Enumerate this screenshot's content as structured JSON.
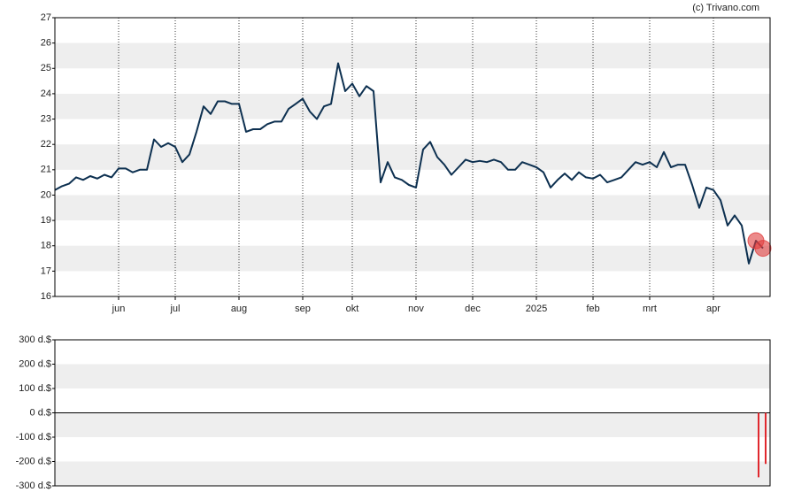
{
  "chart_data": [
    {
      "type": "line",
      "credit": "(c) Trivano.com",
      "categories": [
        null,
        null,
        null,
        null,
        null,
        null,
        null,
        null,
        null,
        "jun",
        null,
        null,
        null,
        null,
        null,
        null,
        null,
        "jul",
        null,
        null,
        null,
        null,
        null,
        null,
        null,
        null,
        "aug",
        null,
        null,
        null,
        null,
        null,
        null,
        null,
        null,
        "sep",
        null,
        null,
        null,
        null,
        null,
        null,
        "okt",
        null,
        null,
        null,
        null,
        null,
        null,
        null,
        null,
        "nov",
        null,
        null,
        null,
        null,
        null,
        null,
        null,
        "dec",
        null,
        null,
        null,
        null,
        null,
        null,
        null,
        null,
        "2025",
        null,
        null,
        null,
        null,
        null,
        null,
        null,
        "feb",
        null,
        null,
        null,
        null,
        null,
        null,
        null,
        "mrt",
        null,
        null,
        null,
        null,
        null,
        null,
        null,
        null,
        "apr",
        null,
        null,
        null,
        null,
        null,
        null,
        null
      ],
      "series": [
        {
          "color": "#0d3050",
          "values": [
            20.2,
            20.35,
            20.45,
            20.7,
            20.6,
            20.75,
            20.65,
            20.8,
            20.7,
            21.05,
            21.05,
            20.9,
            21.0,
            21.0,
            22.2,
            21.9,
            22.05,
            21.9,
            21.3,
            21.6,
            22.5,
            23.5,
            23.2,
            23.7,
            23.7,
            23.6,
            23.6,
            22.5,
            22.6,
            22.6,
            22.8,
            22.9,
            22.9,
            23.4,
            23.6,
            23.8,
            23.3,
            23.0,
            23.5,
            23.6,
            25.2,
            24.1,
            24.4,
            23.9,
            24.3,
            24.1,
            20.5,
            21.3,
            20.7,
            20.6,
            20.4,
            20.3,
            21.8,
            22.1,
            21.5,
            21.2,
            20.8,
            21.1,
            21.4,
            21.3,
            21.35,
            21.3,
            21.4,
            21.3,
            21.0,
            21.0,
            21.3,
            21.2,
            21.1,
            20.9,
            20.3,
            20.6,
            20.85,
            20.6,
            20.9,
            20.7,
            20.65,
            20.8,
            20.5,
            20.6,
            20.7,
            21.0,
            21.3,
            21.2,
            21.3,
            21.1,
            21.7,
            21.1,
            21.2,
            21.2,
            20.4,
            19.5,
            20.3,
            20.2,
            19.8,
            18.8,
            19.2,
            18.8,
            17.3,
            18.2,
            17.9
          ]
        }
      ],
      "ylim": [
        16,
        27
      ],
      "yticks": [
        16,
        17,
        18,
        19,
        20,
        21,
        22,
        23,
        24,
        25,
        26,
        27
      ],
      "marker_color": "#e03c3c"
    },
    {
      "type": "bar",
      "color": "#e0282e",
      "values": [
        null,
        null,
        null,
        null,
        null,
        null,
        null,
        null,
        null,
        null,
        null,
        null,
        null,
        null,
        null,
        null,
        null,
        null,
        null,
        null,
        null,
        null,
        null,
        null,
        null,
        null,
        null,
        null,
        null,
        null,
        null,
        null,
        null,
        null,
        null,
        null,
        null,
        null,
        null,
        null,
        null,
        null,
        null,
        null,
        null,
        null,
        null,
        null,
        null,
        null,
        null,
        null,
        null,
        null,
        null,
        null,
        null,
        null,
        null,
        null,
        null,
        null,
        null,
        null,
        null,
        null,
        null,
        null,
        null,
        null,
        null,
        null,
        null,
        null,
        null,
        null,
        null,
        null,
        null,
        null,
        null,
        null,
        null,
        null,
        null,
        null,
        null,
        null,
        null,
        null,
        null,
        null,
        null,
        null,
        null,
        null,
        null,
        null,
        null,
        -265,
        -210
      ],
      "ylim": [
        -300,
        300
      ],
      "yticks": [
        {
          "value": -300,
          "label": "-300 d.$"
        },
        {
          "value": -200,
          "label": "-200 d.$"
        },
        {
          "value": -100,
          "label": "-100 d.$"
        },
        {
          "value": 0,
          "label": "0 d.$"
        },
        {
          "value": 100,
          "label": "100 d.$"
        },
        {
          "value": 200,
          "label": "200 d.$"
        },
        {
          "value": 300,
          "label": "300 d.$"
        }
      ]
    }
  ]
}
